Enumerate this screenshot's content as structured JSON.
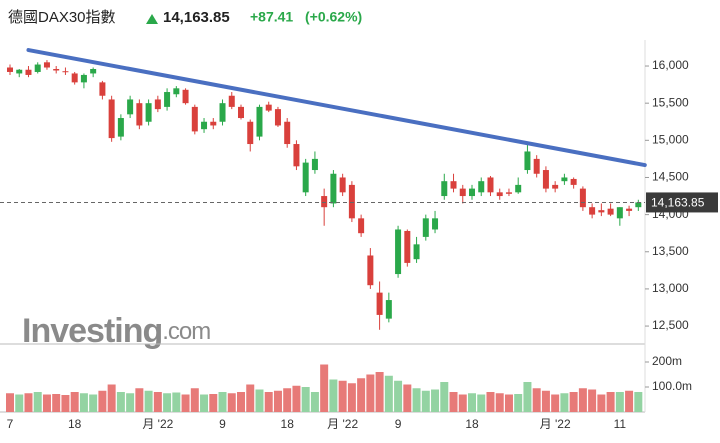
{
  "header": {
    "title": "德國DAX30指數",
    "price": "14,163.85",
    "change": "+87.41",
    "change_pct": "(+0.62%)"
  },
  "watermark": {
    "brand": "Investing",
    "suffix": ".com"
  },
  "chart_data": {
    "type": "candlestick",
    "categories": [
      "7",
      null,
      null,
      null,
      null,
      null,
      null,
      "18",
      null,
      null,
      null,
      null,
      null,
      null,
      null,
      null,
      "月 '22",
      null,
      null,
      null,
      null,
      null,
      null,
      "9",
      null,
      null,
      null,
      null,
      null,
      null,
      "18",
      null,
      null,
      null,
      null,
      null,
      "月 '22",
      null,
      null,
      null,
      null,
      null,
      "9",
      null,
      null,
      null,
      null,
      null,
      null,
      null,
      "18",
      null,
      null,
      null,
      null,
      null,
      null,
      null,
      null,
      "月 '22",
      null,
      null,
      null,
      null,
      null,
      null,
      "11",
      null,
      null
    ],
    "open": [
      15980,
      15900,
      15950,
      15920,
      16050,
      15960,
      15930,
      15900,
      15780,
      15900,
      15780,
      15550,
      15050,
      15350,
      15500,
      15250,
      15550,
      15450,
      15620,
      15680,
      15450,
      15150,
      15250,
      15250,
      15600,
      15450,
      15250,
      15050,
      15480,
      15420,
      15250,
      14950,
      14300,
      14600,
      14250,
      14150,
      14500,
      14400,
      13950,
      13450,
      12950,
      12600,
      13200,
      13780,
      13400,
      13700,
      13800,
      14250,
      14450,
      14350,
      14250,
      14300,
      14500,
      14300,
      14300,
      14300,
      14600,
      14750,
      14600,
      14400,
      14450,
      14480,
      14350,
      14100,
      14060,
      14080,
      13950,
      14080,
      14100
    ],
    "high": [
      16020,
      15960,
      16000,
      16050,
      16080,
      16000,
      15980,
      15920,
      15900,
      15980,
      15800,
      15600,
      15350,
      15600,
      15550,
      15550,
      15600,
      15700,
      15730,
      15700,
      15480,
      15300,
      15300,
      15550,
      15650,
      15480,
      15280,
      15480,
      15520,
      15450,
      15300,
      15000,
      14750,
      14850,
      14350,
      14600,
      14550,
      14450,
      14000,
      13550,
      13100,
      12950,
      13850,
      13800,
      13700,
      14000,
      14050,
      14550,
      14550,
      14400,
      14400,
      14500,
      14520,
      14350,
      14350,
      14500,
      14950,
      14800,
      14650,
      14450,
      14550,
      14500,
      14380,
      14150,
      14150,
      14150,
      14100,
      14120,
      14200
    ],
    "low": [
      15880,
      15850,
      15850,
      15900,
      15950,
      15900,
      15880,
      15750,
      15700,
      15850,
      15550,
      14980,
      15000,
      15300,
      15150,
      15200,
      15380,
      15400,
      15580,
      15480,
      15080,
      15100,
      15150,
      15200,
      15420,
      15280,
      14850,
      15000,
      15380,
      15180,
      14900,
      14600,
      14250,
      14550,
      13850,
      14100,
      14250,
      13900,
      13700,
      13000,
      12450,
      12550,
      13150,
      13300,
      13350,
      13650,
      13750,
      14200,
      14300,
      14150,
      14200,
      14250,
      14250,
      14200,
      14250,
      14280,
      14550,
      14500,
      14300,
      14300,
      14400,
      14350,
      14050,
      13950,
      13980,
      13980,
      13850,
      13980,
      14050
    ],
    "close": [
      15920,
      15950,
      15880,
      16020,
      15980,
      15940,
      15920,
      15780,
      15880,
      15960,
      15600,
      15030,
      15300,
      15550,
      15200,
      15500,
      15420,
      15650,
      15700,
      15500,
      15120,
      15250,
      15200,
      15500,
      15450,
      15300,
      14950,
      15450,
      15400,
      15200,
      14950,
      14650,
      14700,
      14750,
      14100,
      14550,
      14300,
      13950,
      13750,
      13050,
      12650,
      12850,
      13800,
      13350,
      13600,
      13950,
      13950,
      14450,
      14350,
      14250,
      14350,
      14450,
      14300,
      14250,
      14280,
      14400,
      14850,
      14550,
      14350,
      14350,
      14500,
      14400,
      14100,
      14000,
      14030,
      14000,
      14100,
      14050,
      14163.85
    ],
    "volume": [
      75,
      70,
      75,
      80,
      70,
      72,
      68,
      80,
      75,
      70,
      85,
      110,
      80,
      75,
      95,
      85,
      80,
      75,
      78,
      70,
      95,
      70,
      72,
      80,
      75,
      80,
      110,
      90,
      80,
      85,
      95,
      105,
      100,
      80,
      190,
      130,
      125,
      115,
      135,
      150,
      160,
      145,
      125,
      110,
      95,
      85,
      90,
      120,
      80,
      70,
      75,
      70,
      80,
      75,
      70,
      72,
      120,
      95,
      85,
      70,
      75,
      80,
      95,
      90,
      70,
      80,
      80,
      85,
      80
    ],
    "ylim": [
      12272,
      16283
    ],
    "yticks": [
      {
        "value": 12500,
        "label": "12,500"
      },
      {
        "value": 13000,
        "label": "13,000"
      },
      {
        "value": 13500,
        "label": "13,500"
      },
      {
        "value": 14000,
        "label": "14,000"
      },
      {
        "value": 14500,
        "label": "14,500"
      },
      {
        "value": 15000,
        "label": "15,000"
      },
      {
        "value": 15500,
        "label": "15,500"
      },
      {
        "value": 16000,
        "label": "16,000"
      }
    ],
    "volume_ylim": [
      0,
      248
    ],
    "volume_ticks": [
      {
        "value": 100,
        "label": "100.0m"
      },
      {
        "value": 200,
        "label": "200m"
      }
    ],
    "last": {
      "value": 14163.85,
      "label": "14,163.85"
    },
    "trendline": {
      "x": [
        2,
        68.7
      ],
      "y": [
        16215,
        14667
      ],
      "color": "#4a6fc1"
    },
    "up_color": "#2aa84a",
    "down_color": "#d9403c",
    "volume_up_color": "#93d3a2",
    "volume_down_color": "#e77a78"
  }
}
